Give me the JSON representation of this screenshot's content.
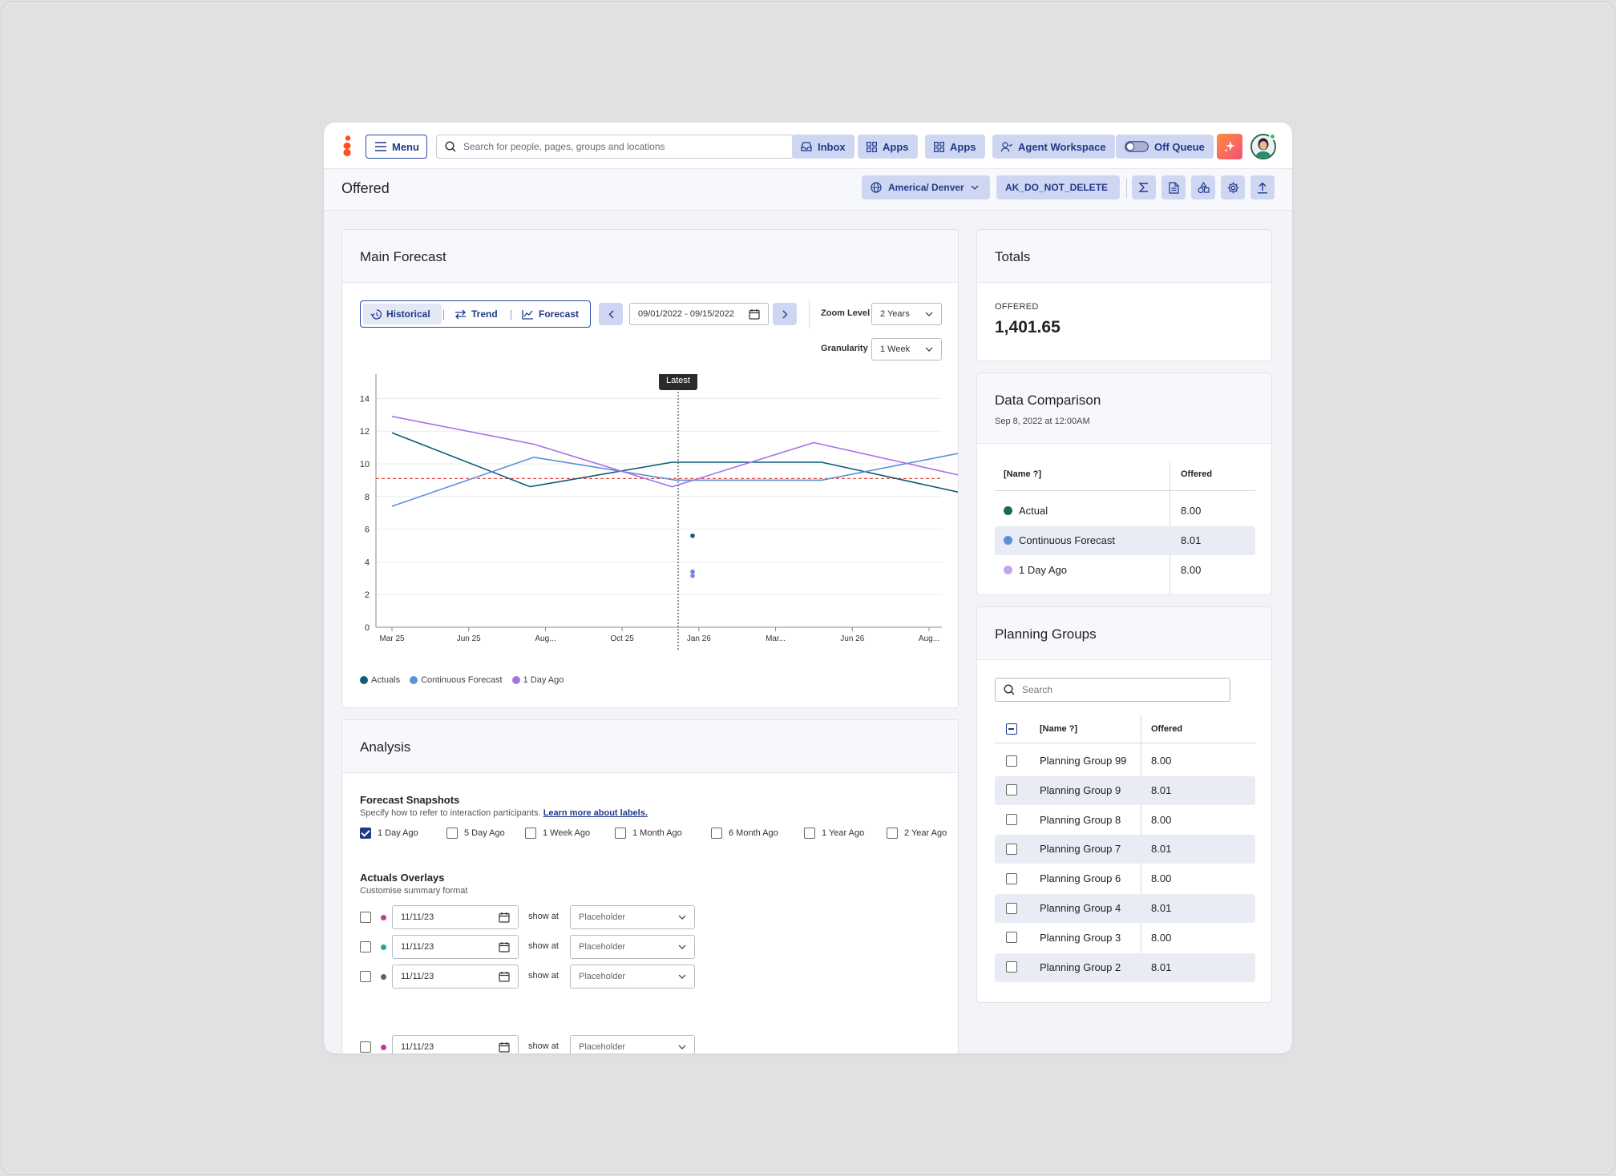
{
  "nav": {
    "menu": "Menu",
    "search_placeholder": "Search for people, pages, groups and locations",
    "inbox": "Inbox",
    "apps1": "Apps",
    "apps2": "Apps",
    "agent_workspace": "Agent Workspace",
    "off_queue": "Off Queue"
  },
  "header": {
    "title": "Offered",
    "timezone": "America/ Denver",
    "account": "AK_DO_NOT_DELETE"
  },
  "main_forecast": {
    "title": "Main Forecast",
    "tabs": [
      "Historical",
      "Trend",
      "Forecast"
    ],
    "date_range": "09/01/2022 - 09/15/2022",
    "zoom_label": "Zoom Level",
    "zoom_value": "2 Years",
    "granularity_label": "Granularity",
    "granularity_value": "1 Week",
    "tooltip": "Latest"
  },
  "chart_data": {
    "type": "line",
    "x": [
      "Mar 25",
      "Jun 25",
      "Aug...",
      "Oct 25",
      "Jan 26",
      "Mar...",
      "Jun 26",
      "Aug..."
    ],
    "y_ticks": [
      0,
      2,
      4,
      6,
      8,
      10,
      12,
      14
    ],
    "ylim": [
      0,
      15
    ],
    "reference_line": 9.1,
    "marker_label": "Latest",
    "series": [
      {
        "name": "Actuals",
        "color": "#0f5a78",
        "points": [
          [
            0,
            11.9
          ],
          [
            1.8,
            8.6
          ],
          [
            3.65,
            10.1
          ],
          [
            5.6,
            10.1
          ],
          [
            7.45,
            8.2
          ]
        ]
      },
      {
        "name": "Continuous Forecast",
        "color": "#5b8fd6",
        "points": [
          [
            0,
            7.4
          ],
          [
            1.85,
            10.4
          ],
          [
            3.7,
            9.0
          ],
          [
            5.6,
            9.0
          ],
          [
            7.45,
            10.7
          ]
        ]
      },
      {
        "name": "1 Day Ago",
        "color": "#a672e8",
        "points": [
          [
            0,
            12.9
          ],
          [
            1.85,
            11.2
          ],
          [
            3.65,
            8.6
          ],
          [
            5.5,
            11.3
          ],
          [
            7.4,
            9.3
          ]
        ]
      }
    ],
    "latest_points": [
      {
        "y": 5.6,
        "color": "#0f5a78"
      },
      {
        "y": 3.4,
        "color": "#5b8fd6"
      },
      {
        "y": 3.15,
        "color": "#a672e8"
      }
    ],
    "legend": [
      "Actuals",
      "Continuous Forecast",
      "1 Day Ago"
    ],
    "legend_position": "bottom-left"
  },
  "analysis": {
    "title": "Analysis",
    "snapshots_title": "Forecast Snapshots",
    "snapshots_sub": "Specify how to refer to interaction participants.",
    "snapshots_link": "Learn more about labels.",
    "snapshots": [
      {
        "label": "1 Day Ago",
        "checked": true
      },
      {
        "label": "5 Day Ago",
        "checked": false
      },
      {
        "label": "1 Week Ago",
        "checked": false
      },
      {
        "label": "1 Month Ago",
        "checked": false
      },
      {
        "label": "6 Month Ago",
        "checked": false
      },
      {
        "label": "1 Year Ago",
        "checked": false
      },
      {
        "label": "2 Year Ago",
        "checked": false
      }
    ],
    "overlays_title": "Actuals Overlays",
    "overlays_sub": "Customise summary format",
    "overlays": [
      {
        "date": "11/11/23",
        "show_at": "show at",
        "placeholder": "Placeholder",
        "color": "#c2399a"
      },
      {
        "date": "11/11/23",
        "show_at": "show at",
        "placeholder": "Placeholder",
        "color": "#1fa9a0"
      },
      {
        "date": "11/11/23",
        "show_at": "show at",
        "placeholder": "Placeholder",
        "color": "#5a5f70"
      },
      {
        "date": "11/11/23",
        "show_at": "show at",
        "placeholder": "Placeholder",
        "color": "#c2399a"
      }
    ]
  },
  "totals": {
    "title": "Totals",
    "label": "OFFERED",
    "value": "1,401.65"
  },
  "comparison": {
    "title": "Data Comparison",
    "subtitle": "Sep 8, 2022 at 12:00AM",
    "col_name": "[Name ?]",
    "col_offered": "Offered",
    "rows": [
      {
        "name": "Actual",
        "value": "8.00",
        "color": "#1d6b4a"
      },
      {
        "name": "Continuous Forecast",
        "value": "8.01",
        "color": "#5b8fd6"
      },
      {
        "name": "1 Day Ago",
        "value": "8.00",
        "color": "#c4a6ef"
      }
    ]
  },
  "planning": {
    "title": "Planning Groups",
    "search_placeholder": "Search",
    "col_name": "[Name ?]",
    "col_offered": "Offered",
    "rows": [
      {
        "name": "Planning Group 99",
        "value": "8.00"
      },
      {
        "name": "Planning Group 9",
        "value": "8.01"
      },
      {
        "name": "Planning Group 8",
        "value": "8.00"
      },
      {
        "name": "Planning Group 7",
        "value": "8.01"
      },
      {
        "name": "Planning Group 6",
        "value": "8.00"
      },
      {
        "name": "Planning Group 4",
        "value": "8.01"
      },
      {
        "name": "Planning Group 3",
        "value": "8.00"
      },
      {
        "name": "Planning Group 2",
        "value": "8.01"
      }
    ]
  }
}
